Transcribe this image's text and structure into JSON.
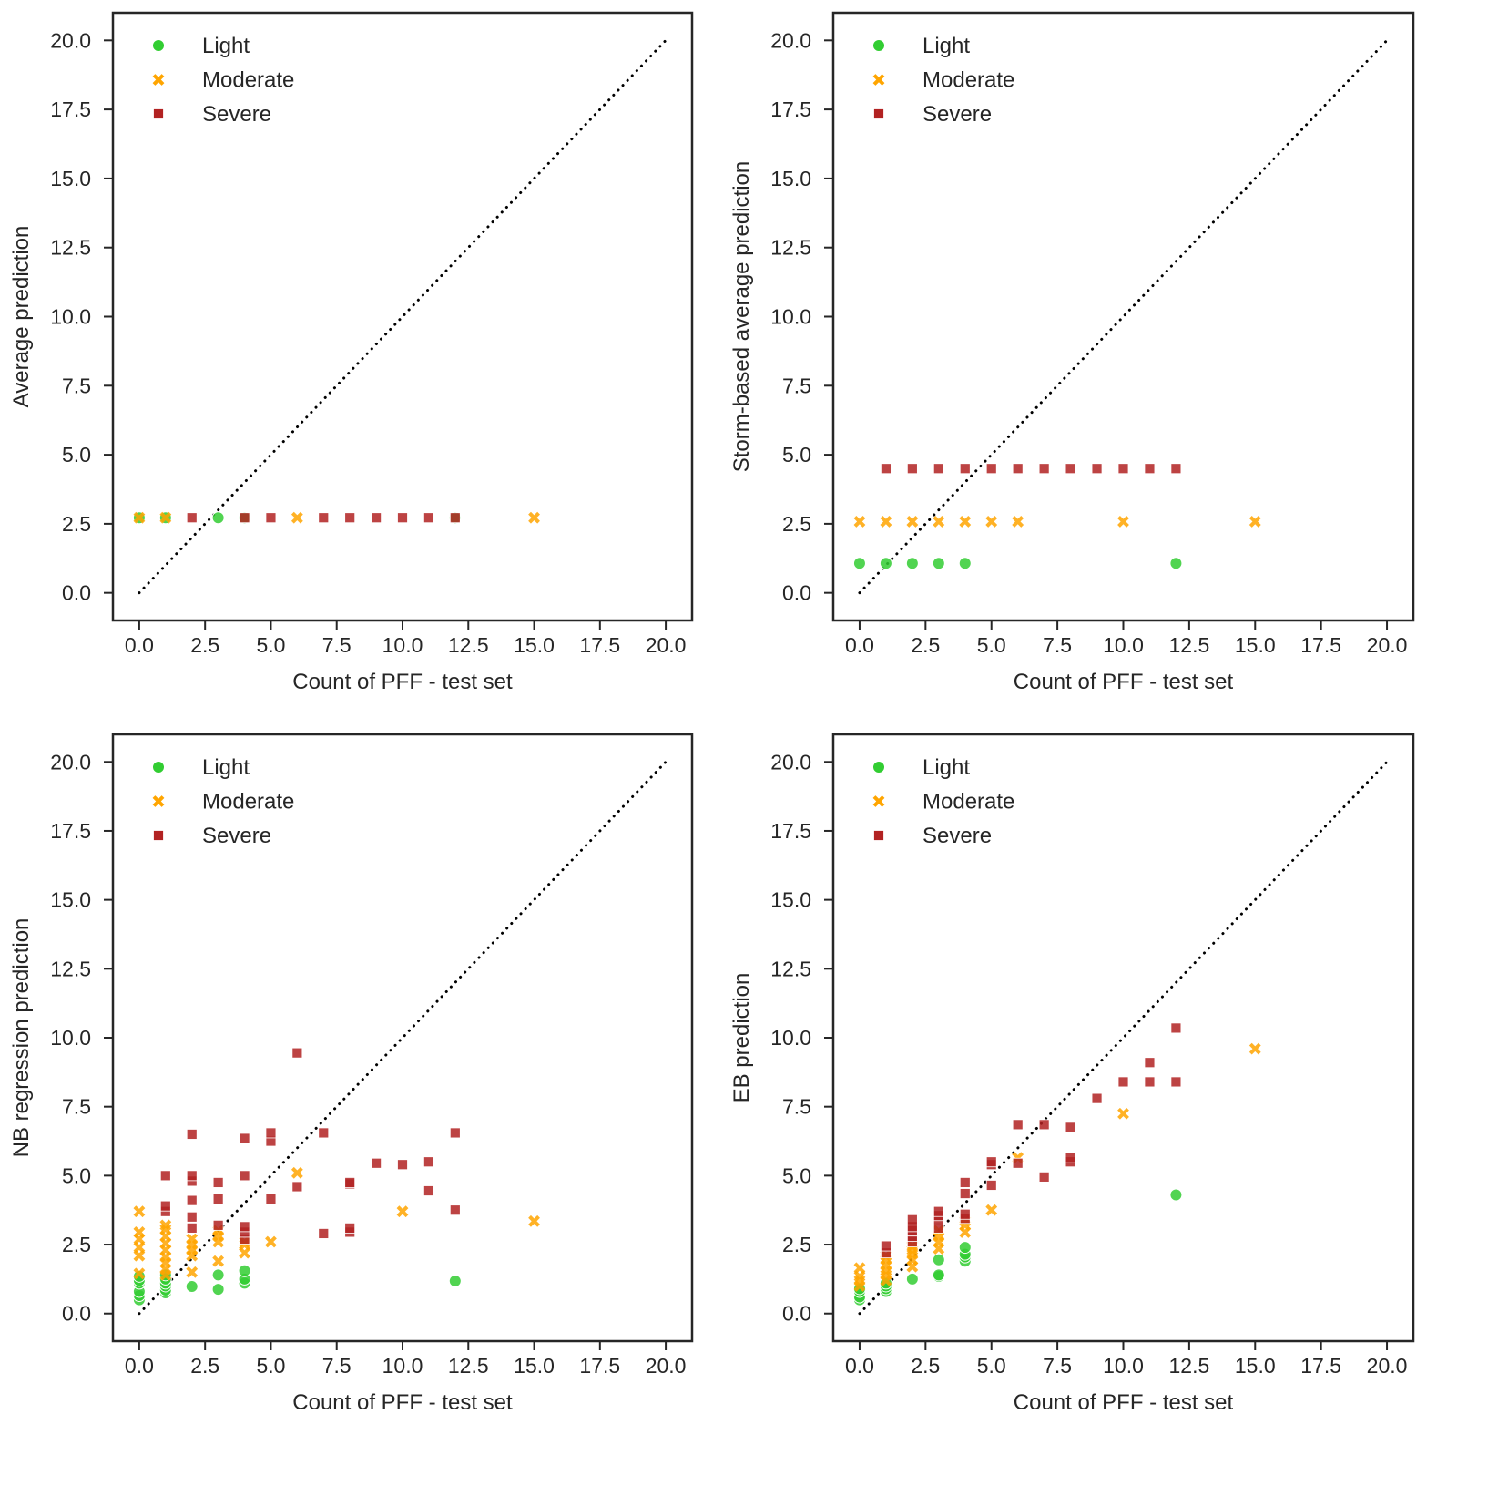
{
  "chart_data": [
    {
      "type": "scatter",
      "title": "",
      "xlabel": "Count of PFF - test set",
      "ylabel": "Average prediction",
      "xlim": [
        -1,
        21
      ],
      "ylim": [
        -1,
        21
      ],
      "xticks": [
        "0.0",
        "2.5",
        "5.0",
        "7.5",
        "10.0",
        "12.5",
        "15.0",
        "17.5",
        "20.0"
      ],
      "yticks": [
        "0.0",
        "2.5",
        "5.0",
        "7.5",
        "10.0",
        "12.5",
        "15.0",
        "17.5",
        "20.0"
      ],
      "legend": {
        "position": "top-left",
        "entries": [
          "Light",
          "Moderate",
          "Severe"
        ]
      },
      "reference_line": {
        "style": "dotted",
        "from": [
          0,
          0
        ],
        "to": [
          20,
          20
        ]
      },
      "series": [
        {
          "name": "Light",
          "marker": "circle",
          "color": "#32cd32",
          "points": [
            [
              0,
              2.72
            ],
            [
              1,
              2.72
            ],
            [
              3,
              2.72
            ],
            [
              4,
              2.72
            ],
            [
              12,
              2.72
            ]
          ]
        },
        {
          "name": "Moderate",
          "marker": "x",
          "color": "#ffa500",
          "points": [
            [
              0,
              2.72
            ],
            [
              1,
              2.72
            ],
            [
              6,
              2.72
            ],
            [
              15,
              2.72
            ]
          ]
        },
        {
          "name": "Severe",
          "marker": "square",
          "color": "#b22222",
          "points": [
            [
              2,
              2.72
            ],
            [
              4,
              2.72
            ],
            [
              5,
              2.72
            ],
            [
              7,
              2.72
            ],
            [
              8,
              2.72
            ],
            [
              9,
              2.72
            ],
            [
              10,
              2.72
            ],
            [
              11,
              2.72
            ],
            [
              12,
              2.72
            ]
          ]
        }
      ]
    },
    {
      "type": "scatter",
      "title": "",
      "xlabel": "Count of PFF - test set",
      "ylabel": "Storm-based average prediction",
      "xlim": [
        -1,
        21
      ],
      "ylim": [
        -1,
        21
      ],
      "xticks": [
        "0.0",
        "2.5",
        "5.0",
        "7.5",
        "10.0",
        "12.5",
        "15.0",
        "17.5",
        "20.0"
      ],
      "yticks": [
        "0.0",
        "2.5",
        "5.0",
        "7.5",
        "10.0",
        "12.5",
        "15.0",
        "17.5",
        "20.0"
      ],
      "legend": {
        "position": "top-left",
        "entries": [
          "Light",
          "Moderate",
          "Severe"
        ]
      },
      "reference_line": {
        "style": "dotted",
        "from": [
          0,
          0
        ],
        "to": [
          20,
          20
        ]
      },
      "series": [
        {
          "name": "Light",
          "marker": "circle",
          "color": "#32cd32",
          "points": [
            [
              0,
              1.07
            ],
            [
              1,
              1.07
            ],
            [
              2,
              1.07
            ],
            [
              3,
              1.07
            ],
            [
              4,
              1.07
            ],
            [
              12,
              1.07
            ]
          ]
        },
        {
          "name": "Moderate",
          "marker": "x",
          "color": "#ffa500",
          "points": [
            [
              0,
              2.58
            ],
            [
              1,
              2.58
            ],
            [
              2,
              2.58
            ],
            [
              3,
              2.58
            ],
            [
              4,
              2.58
            ],
            [
              5,
              2.58
            ],
            [
              6,
              2.58
            ],
            [
              10,
              2.58
            ],
            [
              15,
              2.58
            ]
          ]
        },
        {
          "name": "Severe",
          "marker": "square",
          "color": "#b22222",
          "points": [
            [
              1,
              4.5
            ],
            [
              2,
              4.5
            ],
            [
              3,
              4.5
            ],
            [
              4,
              4.5
            ],
            [
              5,
              4.5
            ],
            [
              6,
              4.5
            ],
            [
              7,
              4.5
            ],
            [
              8,
              4.5
            ],
            [
              9,
              4.5
            ],
            [
              10,
              4.5
            ],
            [
              11,
              4.5
            ],
            [
              12,
              4.5
            ]
          ]
        }
      ]
    },
    {
      "type": "scatter",
      "title": "",
      "xlabel": "Count of PFF - test set",
      "ylabel": "NB regression prediction",
      "xlim": [
        -1,
        21
      ],
      "ylim": [
        -1,
        21
      ],
      "xticks": [
        "0.0",
        "2.5",
        "5.0",
        "7.5",
        "10.0",
        "12.5",
        "15.0",
        "17.5",
        "20.0"
      ],
      "yticks": [
        "0.0",
        "2.5",
        "5.0",
        "7.5",
        "10.0",
        "12.5",
        "15.0",
        "17.5",
        "20.0"
      ],
      "legend": {
        "position": "top-left",
        "entries": [
          "Light",
          "Moderate",
          "Severe"
        ]
      },
      "reference_line": {
        "style": "dotted",
        "from": [
          0,
          0
        ],
        "to": [
          20,
          20
        ]
      },
      "series": [
        {
          "name": "Light",
          "marker": "circle",
          "color": "#32cd32",
          "points": [
            [
              0,
              0.5
            ],
            [
              0,
              0.65
            ],
            [
              0,
              0.8
            ],
            [
              0,
              1.1
            ],
            [
              0,
              1.2
            ],
            [
              0,
              1.35
            ],
            [
              1,
              0.75
            ],
            [
              1,
              0.85
            ],
            [
              1,
              1.0
            ],
            [
              1,
              1.1
            ],
            [
              1,
              1.25
            ],
            [
              1,
              1.4
            ],
            [
              2,
              0.98
            ],
            [
              3,
              0.88
            ],
            [
              3,
              1.4
            ],
            [
              4,
              1.1
            ],
            [
              4,
              1.25
            ],
            [
              4,
              1.55
            ],
            [
              12,
              1.18
            ]
          ]
        },
        {
          "name": "Moderate",
          "marker": "x",
          "color": "#ffa500",
          "points": [
            [
              0,
              1.45
            ],
            [
              0,
              2.1
            ],
            [
              0,
              2.4
            ],
            [
              0,
              2.7
            ],
            [
              0,
              2.95
            ],
            [
              0,
              3.7
            ],
            [
              1,
              1.4
            ],
            [
              1,
              1.6
            ],
            [
              1,
              1.85
            ],
            [
              1,
              2.05
            ],
            [
              1,
              2.3
            ],
            [
              1,
              2.55
            ],
            [
              1,
              2.8
            ],
            [
              1,
              3.05
            ],
            [
              1,
              3.2
            ],
            [
              2,
              1.5
            ],
            [
              2,
              2.1
            ],
            [
              2,
              2.3
            ],
            [
              2,
              2.5
            ],
            [
              2,
              2.7
            ],
            [
              3,
              1.9
            ],
            [
              3,
              2.6
            ],
            [
              3,
              2.8
            ],
            [
              3,
              3.0
            ],
            [
              4,
              2.2
            ],
            [
              4,
              2.5
            ],
            [
              4,
              2.6
            ],
            [
              5,
              2.6
            ],
            [
              6,
              5.1
            ],
            [
              10,
              3.7
            ],
            [
              15,
              3.35
            ]
          ]
        },
        {
          "name": "Severe",
          "marker": "square",
          "color": "#b22222",
          "points": [
            [
              1,
              3.7
            ],
            [
              1,
              3.9
            ],
            [
              1,
              5.0
            ],
            [
              2,
              3.1
            ],
            [
              2,
              3.5
            ],
            [
              2,
              4.1
            ],
            [
              2,
              4.8
            ],
            [
              2,
              5.0
            ],
            [
              2,
              6.5
            ],
            [
              3,
              3.2
            ],
            [
              3,
              4.15
            ],
            [
              3,
              4.75
            ],
            [
              4,
              2.7
            ],
            [
              4,
              2.95
            ],
            [
              4,
              3.15
            ],
            [
              4,
              5.0
            ],
            [
              4,
              6.35
            ],
            [
              5,
              4.15
            ],
            [
              5,
              6.25
            ],
            [
              5,
              6.55
            ],
            [
              6,
              4.6
            ],
            [
              6,
              9.45
            ],
            [
              7,
              2.9
            ],
            [
              7,
              6.55
            ],
            [
              8,
              2.95
            ],
            [
              8,
              3.1
            ],
            [
              8,
              4.7
            ],
            [
              8,
              4.75
            ],
            [
              9,
              5.45
            ],
            [
              10,
              5.4
            ],
            [
              11,
              4.45
            ],
            [
              11,
              5.5
            ],
            [
              12,
              3.75
            ],
            [
              12,
              6.55
            ]
          ]
        }
      ]
    },
    {
      "type": "scatter",
      "title": "",
      "xlabel": "Count of PFF - test set",
      "ylabel": "EB prediction",
      "xlim": [
        -1,
        21
      ],
      "ylim": [
        -1,
        21
      ],
      "xticks": [
        "0.0",
        "2.5",
        "5.0",
        "7.5",
        "10.0",
        "12.5",
        "15.0",
        "17.5",
        "20.0"
      ],
      "yticks": [
        "0.0",
        "2.5",
        "5.0",
        "7.5",
        "10.0",
        "12.5",
        "15.0",
        "17.5",
        "20.0"
      ],
      "legend": {
        "position": "top-left",
        "entries": [
          "Light",
          "Moderate",
          "Severe"
        ]
      },
      "reference_line": {
        "style": "dotted",
        "from": [
          0,
          0
        ],
        "to": [
          20,
          20
        ]
      },
      "series": [
        {
          "name": "Light",
          "marker": "circle",
          "color": "#32cd32",
          "points": [
            [
              0,
              0.5
            ],
            [
              0,
              0.6
            ],
            [
              0,
              0.8
            ],
            [
              0,
              0.9
            ],
            [
              1,
              0.8
            ],
            [
              1,
              0.9
            ],
            [
              1,
              1.0
            ],
            [
              1,
              1.1
            ],
            [
              2,
              1.25
            ],
            [
              3,
              1.35
            ],
            [
              3,
              1.4
            ],
            [
              3,
              1.95
            ],
            [
              4,
              1.9
            ],
            [
              4,
              2.05
            ],
            [
              4,
              2.15
            ],
            [
              4,
              2.4
            ],
            [
              12,
              4.3
            ]
          ]
        },
        {
          "name": "Moderate",
          "marker": "x",
          "color": "#ffa500",
          "points": [
            [
              0,
              1.0
            ],
            [
              0,
              1.2
            ],
            [
              0,
              1.35
            ],
            [
              0,
              1.65
            ],
            [
              1,
              1.2
            ],
            [
              1,
              1.4
            ],
            [
              1,
              1.55
            ],
            [
              1,
              1.75
            ],
            [
              1,
              1.95
            ],
            [
              1,
              2.1
            ],
            [
              2,
              1.7
            ],
            [
              2,
              1.95
            ],
            [
              2,
              2.15
            ],
            [
              2,
              2.3
            ],
            [
              2,
              2.45
            ],
            [
              3,
              2.35
            ],
            [
              3,
              2.6
            ],
            [
              3,
              2.8
            ],
            [
              3,
              3.0
            ],
            [
              4,
              2.95
            ],
            [
              4,
              3.2
            ],
            [
              4,
              3.35
            ],
            [
              5,
              3.75
            ],
            [
              6,
              5.65
            ],
            [
              10,
              7.25
            ],
            [
              15,
              9.6
            ]
          ]
        },
        {
          "name": "Severe",
          "marker": "square",
          "color": "#b22222",
          "points": [
            [
              1,
              2.2
            ],
            [
              1,
              2.45
            ],
            [
              2,
              2.6
            ],
            [
              2,
              2.8
            ],
            [
              2,
              3.0
            ],
            [
              2,
              3.15
            ],
            [
              2,
              3.4
            ],
            [
              3,
              3.1
            ],
            [
              3,
              3.4
            ],
            [
              3,
              3.55
            ],
            [
              3,
              3.7
            ],
            [
              4,
              3.45
            ],
            [
              4,
              3.6
            ],
            [
              4,
              4.35
            ],
            [
              4,
              4.75
            ],
            [
              5,
              4.65
            ],
            [
              5,
              5.4
            ],
            [
              5,
              5.5
            ],
            [
              6,
              5.45
            ],
            [
              6,
              6.85
            ],
            [
              7,
              4.95
            ],
            [
              7,
              6.85
            ],
            [
              8,
              5.5
            ],
            [
              8,
              5.65
            ],
            [
              8,
              6.75
            ],
            [
              9,
              7.8
            ],
            [
              10,
              8.4
            ],
            [
              11,
              8.4
            ],
            [
              11,
              9.1
            ],
            [
              12,
              8.4
            ],
            [
              12,
              10.35
            ]
          ]
        }
      ]
    }
  ]
}
